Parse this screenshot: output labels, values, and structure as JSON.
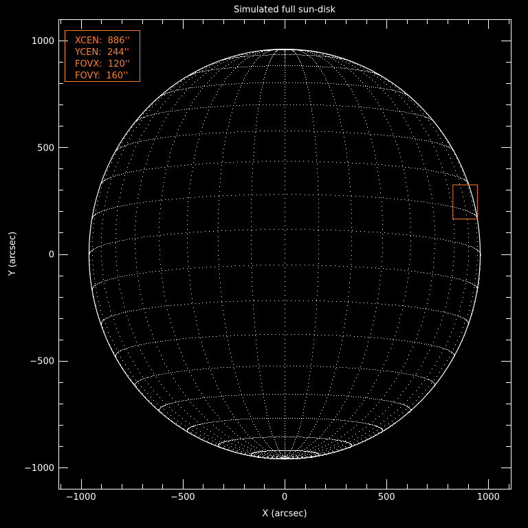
{
  "chart_data": {
    "type": "scatter",
    "title": "Simulated full sun-disk",
    "xlabel": "X (arcsec)",
    "ylabel": "Y (arcsec)",
    "xlim": [
      -1110,
      1110
    ],
    "ylim": [
      -1100,
      1100
    ],
    "xticks": [
      -1000,
      -500,
      0,
      500,
      1000
    ],
    "yticks": [
      -1000,
      -500,
      0,
      500,
      1000
    ],
    "xtick_labels": [
      "−1000",
      "−500",
      "0",
      "500",
      "1000"
    ],
    "ytick_labels": [
      "−1000",
      "−500",
      "0",
      "500",
      "1000"
    ],
    "minor_tick_step": 100,
    "solar_radius_arcsec": 960,
    "b0_deg": -7,
    "grid_spacing_deg": 10,
    "grid_style": "dotted",
    "fov_box": {
      "xcen": 886,
      "ycen": 244,
      "fovx": 120,
      "fovy": 160
    },
    "legend": {
      "placement": "top-left",
      "lines": [
        "XCEN:  886''",
        "YCEN:  244''",
        "FOVX:  120''",
        "FOVY:  160''"
      ]
    },
    "colors": {
      "background": "#000000",
      "axes": "#ffffff",
      "grid": "#ffffff",
      "fov_box": "#ff7f2a",
      "legend": "#ff7f2a"
    }
  }
}
